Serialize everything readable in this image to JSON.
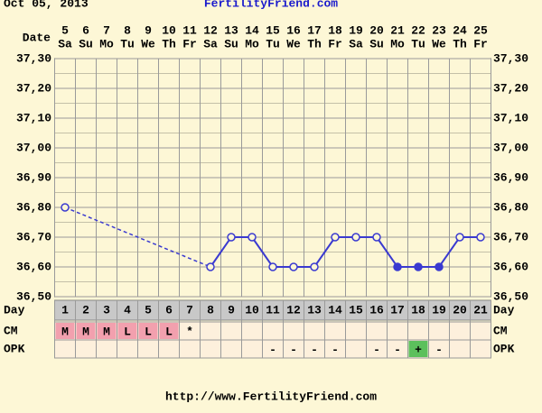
{
  "chart_data": {
    "type": "line",
    "title": "FertilityFriend.com",
    "date_label": "Oct 05, 2013",
    "x_label": "Date",
    "categories": [
      5,
      6,
      7,
      8,
      9,
      10,
      11,
      12,
      13,
      14,
      15,
      16,
      17,
      18,
      19,
      20,
      21,
      22,
      23,
      24,
      25
    ],
    "weekdays": [
      "Sa",
      "Su",
      "Mo",
      "Tu",
      "We",
      "Th",
      "Fr",
      "Sa",
      "Su",
      "Mo",
      "Tu",
      "We",
      "Th",
      "Fr",
      "Sa",
      "Su",
      "Mo",
      "Tu",
      "We",
      "Th",
      "Fr"
    ],
    "values": [
      36.8,
      null,
      null,
      null,
      null,
      null,
      null,
      36.6,
      36.7,
      36.7,
      36.6,
      36.6,
      36.6,
      36.7,
      36.7,
      36.7,
      36.6,
      36.6,
      36.6,
      36.7,
      36.7
    ],
    "filled": [
      false,
      false,
      false,
      false,
      false,
      false,
      false,
      false,
      false,
      false,
      false,
      false,
      false,
      false,
      false,
      false,
      true,
      true,
      true,
      false,
      false
    ],
    "color": "#3a3ad0",
    "ylim": [
      36.5,
      37.3
    ],
    "yticks": [
      {
        "value": 36.5,
        "label": "36,50"
      },
      {
        "value": 36.6,
        "label": "36,60"
      },
      {
        "value": 36.7,
        "label": "36,70"
      },
      {
        "value": 36.8,
        "label": "36,80"
      },
      {
        "value": 36.9,
        "label": "36,90"
      },
      {
        "value": 37.0,
        "label": "37,00"
      },
      {
        "value": 37.1,
        "label": "37,10"
      },
      {
        "value": 37.2,
        "label": "37,20"
      },
      {
        "value": 37.3,
        "label": "37,30"
      }
    ],
    "y_minor_ticks": [
      36.55,
      36.65,
      36.75,
      36.85,
      36.95,
      37.05,
      37.15,
      37.25
    ],
    "grid": true,
    "day_label": "Day",
    "days": [
      1,
      2,
      3,
      4,
      5,
      6,
      7,
      8,
      9,
      10,
      11,
      12,
      13,
      14,
      15,
      16,
      17,
      18,
      19,
      20,
      21
    ],
    "cm_label": "CM",
    "cm": [
      "M",
      "M",
      "M",
      "L",
      "L",
      "L",
      "*",
      null,
      null,
      null,
      null,
      null,
      null,
      null,
      null,
      null,
      null,
      null,
      null,
      null,
      null
    ],
    "opk_label": "OPK",
    "opk": [
      null,
      null,
      null,
      null,
      null,
      null,
      null,
      null,
      null,
      null,
      "-",
      "-",
      "-",
      "-",
      null,
      "-",
      "-",
      "+",
      "-",
      null,
      null
    ],
    "cell_colors": {
      "M": "#f2a0ae",
      "L": "#f2a0ae",
      "+": "#5cc05c"
    },
    "footer": "http://www.FertilityFriend.com"
  }
}
